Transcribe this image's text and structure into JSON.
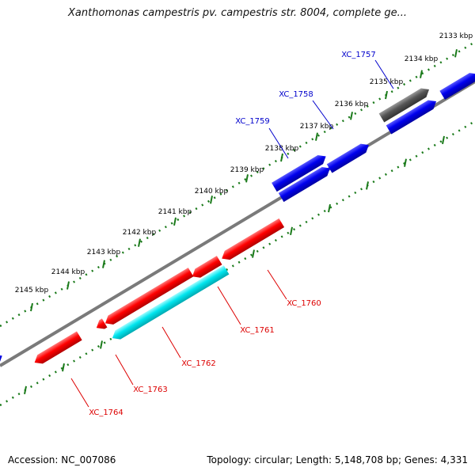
{
  "title": "Xanthomonas campestris pv. campestris str. 8004, complete ge...",
  "footer": {
    "accession": "Accession: NC_007086",
    "stats": "Topology: circular; Length: 5,148,708 bp; Genes: 4,331"
  },
  "colors": {
    "backbone": "#808080",
    "tick_ring": "#1a7a1a",
    "forward_gene": "#0000ee",
    "reverse_gene": "#ff0000",
    "rna_gene": "#00e5ee",
    "other_gene": "#555555",
    "forward_label": "#0000cc",
    "reverse_label": "#dd0000"
  },
  "ticks": [
    "2133 kbp",
    "2134 kbp",
    "2135 kbp",
    "2136 kbp",
    "2137 kbp",
    "2138 kbp",
    "2139 kbp",
    "2140 kbp",
    "2141 kbp",
    "2142 kbp",
    "2143 kbp",
    "2144 kbp",
    "2145 kbp"
  ],
  "genes": [
    {
      "id": "XC_1757",
      "strand": "+",
      "type": "forward"
    },
    {
      "id": "XC_1758",
      "strand": "+",
      "type": "forward"
    },
    {
      "id": "XC_1759",
      "strand": "+",
      "type": "forward"
    },
    {
      "id": "XC_1760",
      "strand": "-",
      "type": "reverse"
    },
    {
      "id": "XC_1761",
      "strand": "-",
      "type": "reverse"
    },
    {
      "id": "XC_1762",
      "strand": "-",
      "type": "rna"
    },
    {
      "id": "XC_1763",
      "strand": "-",
      "type": "reverse"
    },
    {
      "id": "XC_1764",
      "strand": "-",
      "type": "reverse"
    }
  ],
  "icons": {
    "gene_arrow": "gene-arrow-icon"
  }
}
